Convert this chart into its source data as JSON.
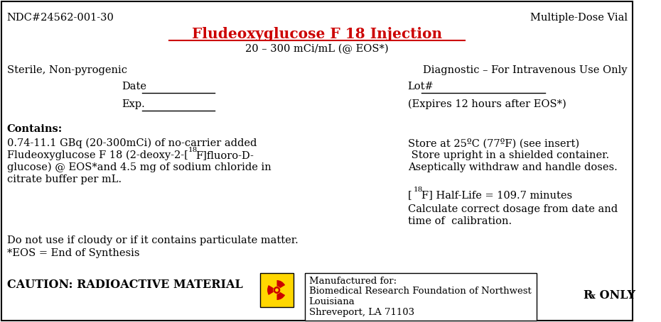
{
  "bg_color": "#ffffff",
  "border_color": "#000000",
  "title": "Fludeoxyglucose F 18 Injection",
  "title_color": "#cc0000",
  "subtitle": "20 – 300 mCi/mL (@ EOS*)",
  "ndc": "NDC#24562-001-30",
  "multi_dose": "Multiple-Dose Vial",
  "sterile": "Sterile, Non-pyrogenic",
  "diagnostic": "Diagnostic – For Intravenous Use Only",
  "date_label": "Date",
  "exp_label": "Exp.",
  "lot_label": "Lot#",
  "expires_note": "(Expires 12 hours after EOS*)",
  "contains_header": "Contains:",
  "contains_text_line1": "0.74-11.1 GBq (20-300mCi) of no-carrier added",
  "contains_text_line2a": "Fludeoxyglucose F 18 (2-deoxy-2-[",
  "contains_text_line2b": "18",
  "contains_text_line2c": "F]fluoro-D-",
  "contains_text_line3": "glucose) @ EOS*and 4.5 mg of sodium chloride in",
  "contains_text_line4": "citrate buffer per mL.",
  "store_line1": "Store at 25ºC (77ºF) (see insert)",
  "store_line2": " Store upright in a shielded container.",
  "store_line3": "Aseptically withdraw and handle doses.",
  "halflife_line2": "Calculate correct dosage from date and",
  "halflife_line3": "time of  calibration.",
  "donot": "Do not use if cloudy or if it contains particulate matter.",
  "eos": "*EOS = End of Synthesis",
  "caution": "CAUTION: RADIOACTIVE MATERIAL",
  "mfg_for": "Manufactured for:",
  "mfg_name": "Biomedical Research Foundation of Northwest",
  "mfg_state": "Louisiana",
  "mfg_city": "Shreveport, LA 71103",
  "radiation_color": "#FFD700",
  "radiation_symbol_color": "#cc0000",
  "fs": 10.5,
  "small_fs": 9.5
}
